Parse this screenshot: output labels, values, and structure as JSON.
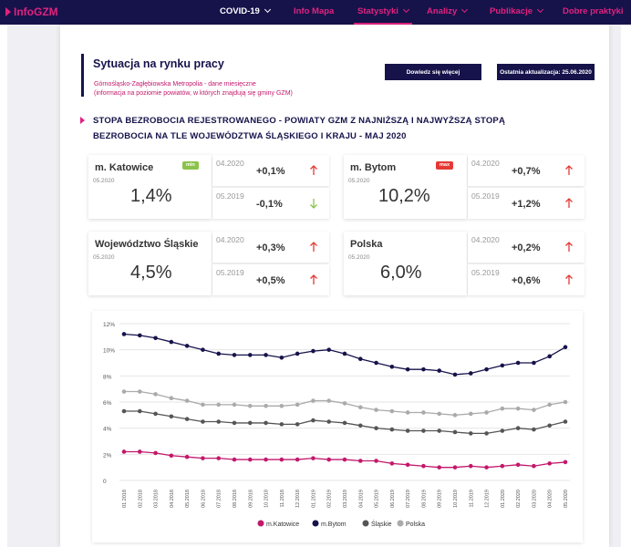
{
  "nav": {
    "logo": "InfoGZM",
    "items": [
      {
        "label": "COVID-19",
        "dropdown": true
      },
      {
        "label": "Info Mapa",
        "dropdown": false
      },
      {
        "label": "Statystyki",
        "dropdown": true
      },
      {
        "label": "Analizy",
        "dropdown": true
      },
      {
        "label": "Publikacje",
        "dropdown": true
      },
      {
        "label": "Dobre praktyki",
        "dropdown": false
      }
    ]
  },
  "header": {
    "title": "Sytuacja na rynku pracy",
    "subtitle_line1": "Górnośląsko-Zagłębiowska Metropolia - dane miesięczne",
    "subtitle_line2": "(informacja na poziomie powiatów, w których znajdują się gminy GZM)",
    "learn_more_button": "Dowiedz się więcej",
    "last_update": "Ostatnia aktualizacja: 25.06.2020"
  },
  "section": {
    "title_line1": "STOPA BEZROBOCIA REJESTROWANEGO - POWIATY GZM Z NAJNIŻSZĄ I NAJWYŻSZĄ STOPĄ",
    "title_line2": "BEZROBOCIA NA TLE WOJEWÓDZTWA ŚLĄSKIEGO I KRAJU - MAJ 2020"
  },
  "cards": [
    {
      "name": "m. Katowice",
      "date": "05.2020",
      "value": "1,4%",
      "badge": "min",
      "c1_label": "04.2020",
      "c1_value": "+0,1%",
      "c2_label": "05.2019",
      "c2_value": "-0,1%"
    },
    {
      "name": "m. Bytom",
      "date": "05.2020",
      "value": "10,2%",
      "badge": "max",
      "c1_label": "04.2020",
      "c1_value": "+0,7%",
      "c2_label": "05.2019",
      "c2_value": "+1,2%"
    },
    {
      "name": "Województwo Śląskie",
      "date": "05.2020",
      "value": "4,5%",
      "badge": "",
      "c1_label": "04.2020",
      "c1_value": "+0,3%",
      "c2_label": "05.2019",
      "c2_value": "+0,5%"
    },
    {
      "name": "Polska",
      "date": "05.2020",
      "value": "6,0%",
      "badge": "",
      "c1_label": "04.2020",
      "c1_value": "+0,2%",
      "c2_label": "05.2019",
      "c2_value": "+0,6%"
    }
  ],
  "colors": {
    "up": "#e53935",
    "down": "#8bc34a",
    "accent": "#e0227e",
    "navy": "#16134b"
  },
  "chart_data": {
    "type": "line",
    "x": [
      "01.2018",
      "02.2018",
      "03.2018",
      "04.2018",
      "05.2018",
      "06.2018",
      "07.2018",
      "08.2018",
      "09.2018",
      "10.2018",
      "11.2018",
      "12.2018",
      "01.2019",
      "02.2019",
      "03.2019",
      "04.2019",
      "05.2019",
      "06.2019",
      "07.2019",
      "08.2019",
      "09.2019",
      "10.2019",
      "11.2019",
      "12.2019",
      "01.2020",
      "02.2020",
      "03.2020",
      "04.2020",
      "05.2020"
    ],
    "yticks": [
      "0",
      "2%",
      "4%",
      "6%",
      "8%",
      "10%",
      "12%"
    ],
    "ylim": [
      0,
      12
    ],
    "grid": true,
    "legend_position": "bottom",
    "series": [
      {
        "name": "m.Katowice",
        "color": "#c2186b",
        "values": [
          2.2,
          2.2,
          2.1,
          1.9,
          1.8,
          1.7,
          1.7,
          1.6,
          1.6,
          1.6,
          1.6,
          1.6,
          1.7,
          1.6,
          1.6,
          1.5,
          1.5,
          1.3,
          1.2,
          1.1,
          1.0,
          1.0,
          1.1,
          1.0,
          1.1,
          1.2,
          1.1,
          1.3,
          1.4
        ]
      },
      {
        "name": "m.Bytom",
        "color": "#16134b",
        "values": [
          11.2,
          11.1,
          10.9,
          10.6,
          10.3,
          10.0,
          9.7,
          9.6,
          9.6,
          9.6,
          9.4,
          9.7,
          9.9,
          10.0,
          9.7,
          9.3,
          9.0,
          8.7,
          8.5,
          8.5,
          8.4,
          8.1,
          8.2,
          8.5,
          8.8,
          9.0,
          9.0,
          9.5,
          10.2
        ]
      },
      {
        "name": "Śląskie",
        "color": "#555555",
        "values": [
          5.3,
          5.3,
          5.1,
          4.9,
          4.7,
          4.5,
          4.5,
          4.4,
          4.4,
          4.4,
          4.3,
          4.3,
          4.6,
          4.5,
          4.4,
          4.2,
          4.0,
          3.9,
          3.8,
          3.8,
          3.8,
          3.7,
          3.6,
          3.6,
          3.8,
          4.0,
          3.9,
          4.2,
          4.5
        ]
      },
      {
        "name": "Polska",
        "color": "#aaaaaa",
        "values": [
          6.8,
          6.8,
          6.6,
          6.3,
          6.1,
          5.8,
          5.8,
          5.8,
          5.7,
          5.7,
          5.7,
          5.8,
          6.1,
          6.1,
          5.9,
          5.6,
          5.4,
          5.3,
          5.2,
          5.2,
          5.1,
          5.0,
          5.1,
          5.2,
          5.5,
          5.5,
          5.4,
          5.8,
          6.0
        ]
      }
    ]
  }
}
